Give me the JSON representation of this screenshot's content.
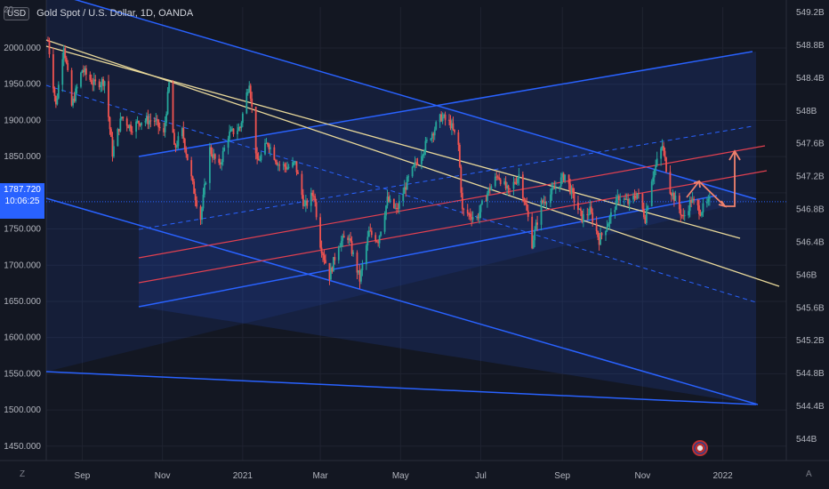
{
  "header": {
    "currency_badge": "USD",
    "title": "Gold Spot / U.S. Dollar, 1D, OANDA"
  },
  "last_price": {
    "value": "1787.720",
    "countdown": "10:06:25"
  },
  "corner_labels": {
    "top_left": "20",
    "bottom_left": "Z",
    "bottom_right": "A"
  },
  "colors": {
    "background": "#131722",
    "up_candle": "#26a69a",
    "down_candle": "#ef5350",
    "channel": "#2962ff",
    "yellow_line": "#e8d89a",
    "red_line": "#e04050",
    "arrow": "#f0826e"
  },
  "chart_data": {
    "type": "candlestick",
    "title": "Gold Spot / U.S. Dollar, 1D, OANDA",
    "left_axis": {
      "ticks": [
        "2000.000",
        "1950.000",
        "1900.000",
        "1850.000",
        "1800.000",
        "1750.000",
        "1700.000",
        "1650.000",
        "1600.000",
        "1550.000",
        "1500.000",
        "1450.000"
      ],
      "range": [
        1420,
        2030
      ]
    },
    "right_axis": {
      "ticks": [
        "549.2B",
        "548.8B",
        "548.4B",
        "548B",
        "547.6B",
        "547.2B",
        "546.8B",
        "546.4B",
        "546B",
        "545.6B",
        "545.2B",
        "544.8B",
        "544.4B",
        "544B"
      ]
    },
    "x_axis": {
      "ticks": [
        "Sep",
        "Nov",
        "2021",
        "Mar",
        "May",
        "Jul",
        "Sep",
        "Nov",
        "2022"
      ]
    },
    "price_path": [
      [
        "2020-08-06",
        2010
      ],
      [
        "2020-08-12",
        1920
      ],
      [
        "2020-08-18",
        2005
      ],
      [
        "2020-08-24",
        1920
      ],
      [
        "2020-09-01",
        1970
      ],
      [
        "2020-09-10",
        1950
      ],
      [
        "2020-09-18",
        1955
      ],
      [
        "2020-09-24",
        1855
      ],
      [
        "2020-10-01",
        1905
      ],
      [
        "2020-10-08",
        1890
      ],
      [
        "2020-10-16",
        1900
      ],
      [
        "2020-10-26",
        1900
      ],
      [
        "2020-11-02",
        1880
      ],
      [
        "2020-11-06",
        1950
      ],
      [
        "2020-11-10",
        1860
      ],
      [
        "2020-11-16",
        1885
      ],
      [
        "2020-11-24",
        1810
      ],
      [
        "2020-11-30",
        1765
      ],
      [
        "2020-12-07",
        1860
      ],
      [
        "2020-12-14",
        1835
      ],
      [
        "2020-12-21",
        1880
      ],
      [
        "2020-12-30",
        1890
      ],
      [
        "2021-01-06",
        1955
      ],
      [
        "2021-01-12",
        1840
      ],
      [
        "2021-01-20",
        1870
      ],
      [
        "2021-01-28",
        1840
      ],
      [
        "2021-02-04",
        1835
      ],
      [
        "2021-02-10",
        1840
      ],
      [
        "2021-02-17",
        1780
      ],
      [
        "2021-02-24",
        1800
      ],
      [
        "2021-03-01",
        1730
      ],
      [
        "2021-03-08",
        1685
      ],
      [
        "2021-03-15",
        1730
      ],
      [
        "2021-03-22",
        1740
      ],
      [
        "2021-03-31",
        1680
      ],
      [
        "2021-04-07",
        1745
      ],
      [
        "2021-04-14",
        1735
      ],
      [
        "2021-04-21",
        1790
      ],
      [
        "2021-04-28",
        1775
      ],
      [
        "2021-05-06",
        1815
      ],
      [
        "2021-05-14",
        1845
      ],
      [
        "2021-05-24",
        1880
      ],
      [
        "2021-06-01",
        1905
      ],
      [
        "2021-06-08",
        1895
      ],
      [
        "2021-06-14",
        1865
      ],
      [
        "2021-06-17",
        1775
      ],
      [
        "2021-06-28",
        1765
      ],
      [
        "2021-07-06",
        1800
      ],
      [
        "2021-07-14",
        1825
      ],
      [
        "2021-07-22",
        1800
      ],
      [
        "2021-07-30",
        1825
      ],
      [
        "2021-08-06",
        1765
      ],
      [
        "2021-08-09",
        1730
      ],
      [
        "2021-08-16",
        1785
      ],
      [
        "2021-08-24",
        1800
      ],
      [
        "2021-09-03",
        1825
      ],
      [
        "2021-09-10",
        1790
      ],
      [
        "2021-09-16",
        1765
      ],
      [
        "2021-09-22",
        1775
      ],
      [
        "2021-09-29",
        1735
      ],
      [
        "2021-10-06",
        1760
      ],
      [
        "2021-10-14",
        1795
      ],
      [
        "2021-10-22",
        1785
      ],
      [
        "2021-10-28",
        1800
      ],
      [
        "2021-11-03",
        1765
      ],
      [
        "2021-11-08",
        1820
      ],
      [
        "2021-11-16",
        1865
      ],
      [
        "2021-11-22",
        1805
      ],
      [
        "2021-11-26",
        1790
      ],
      [
        "2021-12-02",
        1765
      ],
      [
        "2021-12-08",
        1790
      ],
      [
        "2021-12-15",
        1775
      ],
      [
        "2021-12-22",
        1787.72
      ]
    ]
  }
}
